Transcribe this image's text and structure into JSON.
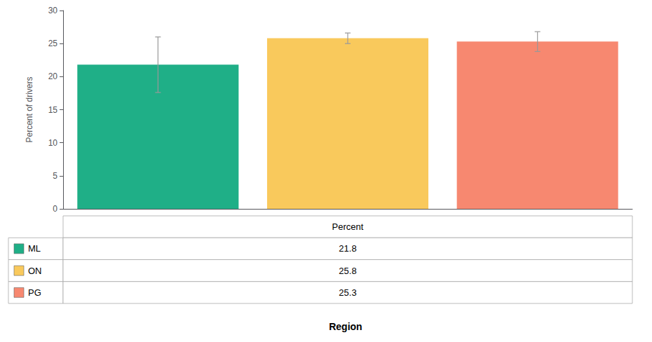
{
  "chart_data": {
    "type": "bar",
    "categories": [
      "ML",
      "ON",
      "PG"
    ],
    "values": [
      21.8,
      25.8,
      25.3
    ],
    "errors": [
      4.2,
      0.8,
      1.5
    ],
    "colors": [
      "#1FAF87",
      "#F9C95C",
      "#F78870"
    ],
    "ylabel": "Percent of drivers",
    "xlabel": "Region",
    "ylim": [
      0,
      30
    ],
    "yticks": [
      0,
      5,
      10,
      15,
      20,
      25,
      30
    ],
    "grid": false,
    "tick_labels": "y",
    "table": {
      "header": "Percent",
      "values": [
        21.8,
        25.8,
        25.3
      ]
    }
  }
}
